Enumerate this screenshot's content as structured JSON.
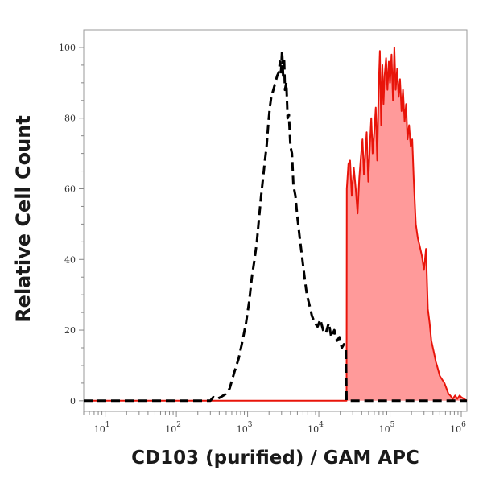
{
  "chart_data": {
    "type": "area",
    "title": "",
    "xlabel": "CD103 (purified) / GAM APC",
    "ylabel": "Relative Cell Count",
    "x_scale": "log",
    "xlim": [
      5,
      1200000
    ],
    "ylim": [
      -3,
      105
    ],
    "grid": false,
    "legend": "none",
    "x_ticks": [
      {
        "value": 10,
        "base": "10",
        "exp": "1"
      },
      {
        "value": 100,
        "base": "10",
        "exp": "2"
      },
      {
        "value": 1000,
        "base": "10",
        "exp": "3"
      },
      {
        "value": 10000,
        "base": "10",
        "exp": "4"
      },
      {
        "value": 100000,
        "base": "10",
        "exp": "5"
      },
      {
        "value": 1000000,
        "base": "10",
        "exp": "6"
      }
    ],
    "y_ticks": [
      {
        "value": 0,
        "label": "0"
      },
      {
        "value": 20,
        "label": "20"
      },
      {
        "value": 40,
        "label": "40"
      },
      {
        "value": 60,
        "label": "60"
      },
      {
        "value": 80,
        "label": "80"
      },
      {
        "value": 100,
        "label": "100"
      }
    ],
    "series": [
      {
        "style": "dashed",
        "color": "#000000",
        "points": [
          [
            5,
            0
          ],
          [
            300,
            0
          ],
          [
            330,
            1
          ],
          [
            370,
            0.5
          ],
          [
            420,
            1
          ],
          [
            500,
            2
          ],
          [
            560,
            3.5
          ],
          [
            650,
            8
          ],
          [
            750,
            12
          ],
          [
            850,
            17
          ],
          [
            950,
            22
          ],
          [
            1050,
            28
          ],
          [
            1150,
            35
          ],
          [
            1250,
            40
          ],
          [
            1350,
            45
          ],
          [
            1450,
            52
          ],
          [
            1550,
            58
          ],
          [
            1650,
            63
          ],
          [
            1750,
            68
          ],
          [
            1850,
            72
          ],
          [
            1950,
            78
          ],
          [
            2050,
            83
          ],
          [
            2150,
            86
          ],
          [
            2300,
            88
          ],
          [
            2450,
            90
          ],
          [
            2600,
            92
          ],
          [
            2750,
            93
          ],
          [
            2850,
            96
          ],
          [
            2950,
            93
          ],
          [
            3050,
            99
          ],
          [
            3150,
            92
          ],
          [
            3250,
            97
          ],
          [
            3350,
            88
          ],
          [
            3500,
            90
          ],
          [
            3650,
            80
          ],
          [
            3800,
            81
          ],
          [
            4000,
            72
          ],
          [
            4200,
            70
          ],
          [
            4400,
            61
          ],
          [
            4700,
            58
          ],
          [
            5000,
            52
          ],
          [
            5400,
            46
          ],
          [
            5800,
            41
          ],
          [
            6300,
            35
          ],
          [
            6800,
            30
          ],
          [
            7400,
            27
          ],
          [
            8000,
            24
          ],
          [
            8800,
            22
          ],
          [
            9600,
            21
          ],
          [
            10500,
            23
          ],
          [
            11500,
            20
          ],
          [
            12500,
            19
          ],
          [
            13800,
            22
          ],
          [
            15000,
            18
          ],
          [
            16500,
            20
          ],
          [
            18000,
            17
          ],
          [
            19500,
            18
          ],
          [
            21000,
            15
          ],
          [
            22500,
            16
          ],
          [
            24000,
            15
          ],
          [
            24500,
            0
          ],
          [
            1200000,
            0
          ]
        ]
      },
      {
        "style": "filled",
        "color": "#e8140a",
        "fill": "#ff9a9a",
        "points": [
          [
            5,
            0
          ],
          [
            24500,
            0
          ],
          [
            24700,
            60
          ],
          [
            26000,
            67
          ],
          [
            27500,
            68
          ],
          [
            29000,
            58
          ],
          [
            31000,
            66
          ],
          [
            33000,
            60
          ],
          [
            35000,
            53
          ],
          [
            37000,
            63
          ],
          [
            39000,
            69
          ],
          [
            41000,
            74
          ],
          [
            43000,
            64
          ],
          [
            45000,
            70
          ],
          [
            47000,
            76
          ],
          [
            49500,
            62
          ],
          [
            52000,
            72
          ],
          [
            54500,
            80
          ],
          [
            57000,
            70
          ],
          [
            60000,
            76
          ],
          [
            63000,
            83
          ],
          [
            66000,
            68
          ],
          [
            69000,
            88
          ],
          [
            72000,
            99
          ],
          [
            75000,
            78
          ],
          [
            78000,
            95
          ],
          [
            81000,
            84
          ],
          [
            84000,
            92
          ],
          [
            88000,
            97
          ],
          [
            92000,
            88
          ],
          [
            96000,
            96
          ],
          [
            100000,
            90
          ],
          [
            105000,
            98
          ],
          [
            110000,
            85
          ],
          [
            115000,
            100
          ],
          [
            120000,
            88
          ],
          [
            126000,
            94
          ],
          [
            132000,
            86
          ],
          [
            138000,
            91
          ],
          [
            145000,
            82
          ],
          [
            152000,
            88
          ],
          [
            160000,
            79
          ],
          [
            168000,
            84
          ],
          [
            176000,
            74
          ],
          [
            185000,
            78
          ],
          [
            195000,
            72
          ],
          [
            205000,
            74
          ],
          [
            215000,
            63
          ],
          [
            230000,
            50
          ],
          [
            245000,
            46
          ],
          [
            260000,
            44
          ],
          [
            280000,
            41
          ],
          [
            300000,
            37
          ],
          [
            320000,
            43
          ],
          [
            340000,
            26
          ],
          [
            360000,
            22
          ],
          [
            380000,
            17
          ],
          [
            410000,
            14
          ],
          [
            440000,
            11
          ],
          [
            470000,
            9
          ],
          [
            500000,
            7
          ],
          [
            540000,
            6
          ],
          [
            580000,
            5
          ],
          [
            620000,
            3.5
          ],
          [
            660000,
            2
          ],
          [
            700000,
            1.5
          ],
          [
            760000,
            0.5
          ],
          [
            820000,
            1.5
          ],
          [
            880000,
            0.5
          ],
          [
            950000,
            1.5
          ],
          [
            1000000,
            1
          ],
          [
            1200000,
            0
          ]
        ]
      }
    ]
  }
}
